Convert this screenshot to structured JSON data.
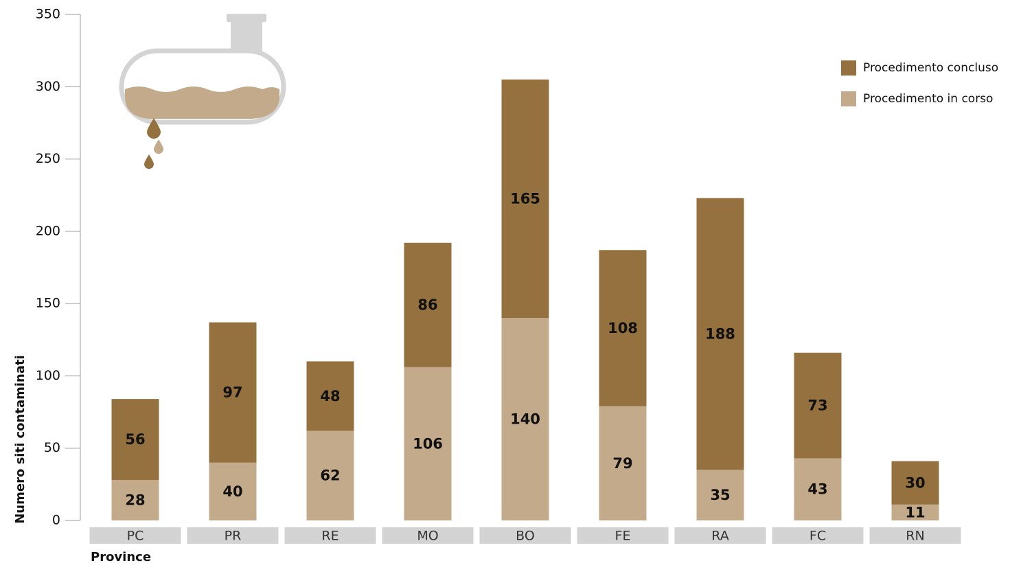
{
  "chart_data": {
    "type": "stacked_bar",
    "y_label": "Numero siti contaminati",
    "x_label": "Province",
    "categories": [
      "PC",
      "PR",
      "RE",
      "MO",
      "BO",
      "FE",
      "RA",
      "FC",
      "RN"
    ],
    "series": [
      {
        "name": "Procedimento in corso",
        "color": "#c2aa8a",
        "values": [
          28,
          40,
          62,
          106,
          140,
          79,
          35,
          43,
          11
        ]
      },
      {
        "name": "Procedimento concluso",
        "color": "#94713f",
        "values": [
          56,
          97,
          48,
          86,
          165,
          108,
          188,
          73,
          30
        ]
      }
    ],
    "ylim": [
      0,
      350
    ],
    "yticks": [
      0,
      50,
      100,
      150,
      200,
      250,
      300,
      350
    ]
  }
}
